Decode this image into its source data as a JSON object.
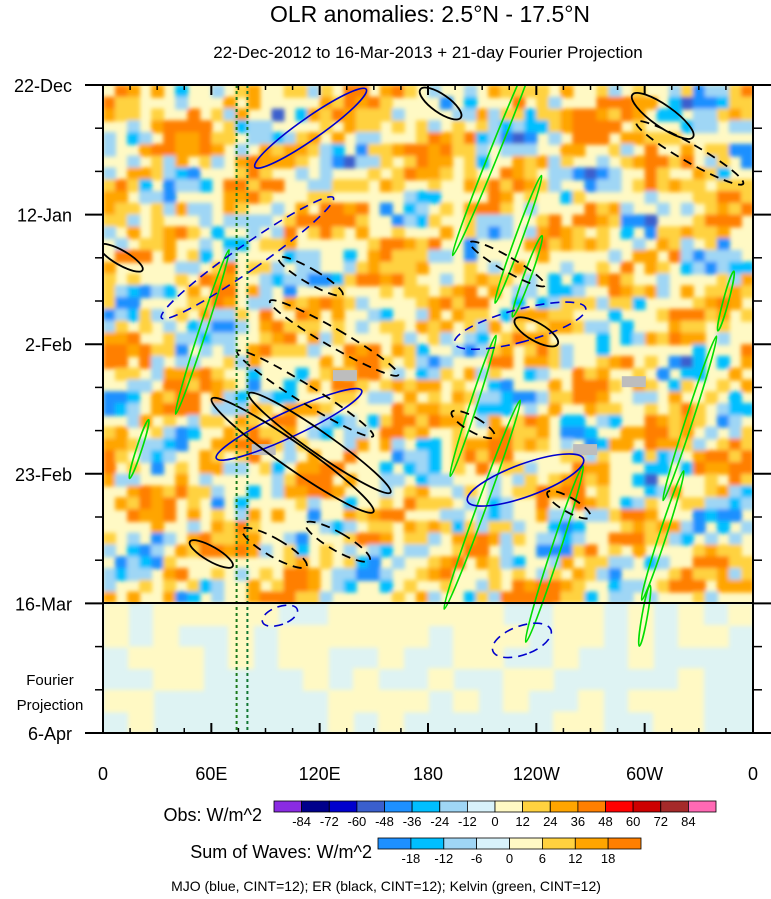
{
  "chart_data": {
    "type": "heatmap",
    "title": "OLR anomalies: 2.5°N - 17.5°N",
    "subtitle": "22-Dec-2012 to 16-Mar-2013 + 21-day Fourier Projection",
    "x_ticks": [
      "0",
      "60E",
      "120E",
      "180",
      "120W",
      "60W",
      "0"
    ],
    "x_tick_lon": [
      0,
      60,
      120,
      180,
      240,
      300,
      360
    ],
    "xlim": [
      0,
      360
    ],
    "y_ticks": [
      "22-Dec",
      "12-Jan",
      "2-Feb",
      "23-Feb",
      "16-Mar",
      "6-Apr"
    ],
    "y_tick_day": [
      0,
      21,
      42,
      63,
      84,
      105
    ],
    "ylim_days": [
      0,
      105
    ],
    "observation_end_day": 84,
    "projection_label_line1": "Fourier",
    "projection_label_line2": "Projection",
    "obs_colorbar": {
      "label": "Obs: W/m^2",
      "levels": [
        "-84",
        "-72",
        "-60",
        "-48",
        "-36",
        "-24",
        "-12",
        "0",
        "12",
        "24",
        "36",
        "48",
        "60",
        "72",
        "84"
      ],
      "colors": [
        "#8a2be2",
        "#00008b",
        "#0000cd",
        "#3a5fcd",
        "#1e90ff",
        "#00bfff",
        "#9fd6f5",
        "#d8f2fb",
        "#fff9c4",
        "#ffd23f",
        "#ffa500",
        "#ff7f00",
        "#ff0000",
        "#cd0000",
        "#a52a2a",
        "#ff69b4"
      ]
    },
    "waves_colorbar": {
      "label": "Sum of Waves: W/m^2",
      "levels": [
        "-18",
        "-12",
        "-6",
        "0",
        "6",
        "12",
        "18"
      ],
      "colors": [
        "#1e90ff",
        "#00bfff",
        "#9fd6f5",
        "#d8f2fb",
        "#fff9c4",
        "#ffd23f",
        "#ffa500",
        "#ff7f00"
      ]
    },
    "legend_note": "MJO (blue, CINT=12); ER (black, CINT=12); Kelvin (green, CINT=12)",
    "reference_longitudes": [
      74,
      80
    ],
    "series": [
      {
        "name": "MJO",
        "color": "#0000cd"
      },
      {
        "name": "ER",
        "color": "#000000"
      },
      {
        "name": "Kelvin",
        "color": "#00dd00"
      }
    ],
    "mjo_contours": [
      {
        "lon": 115,
        "day": 7,
        "len_days": 22,
        "wid": 12,
        "angle": 55,
        "dash": false
      },
      {
        "lon": 80,
        "day": 28,
        "len_days": 34,
        "wid": 14,
        "angle": 55,
        "dash": true
      },
      {
        "lon": 103,
        "day": 55,
        "len_days": 26,
        "wid": 14,
        "angle": 65,
        "dash": false
      },
      {
        "lon": 231,
        "day": 39,
        "len_days": 22,
        "wid": 18,
        "angle": 75,
        "dash": true
      },
      {
        "lon": 234,
        "day": 64,
        "len_days": 20,
        "wid": 18,
        "angle": 70,
        "dash": false
      },
      {
        "lon": 232,
        "day": 90,
        "len_days": 10,
        "wid": 16,
        "angle": 70,
        "dash": true
      },
      {
        "lon": 98,
        "day": 86,
        "len_days": 6,
        "wid": 10,
        "angle": 70,
        "dash": true
      }
    ],
    "er_contours": [
      {
        "lon": 105,
        "day": 60,
        "len_days": 32,
        "wid": 14,
        "angle": -55,
        "dash": false
      },
      {
        "lon": 120,
        "day": 58,
        "len_days": 28,
        "wid": 12,
        "angle": -55,
        "dash": false
      },
      {
        "lon": 112,
        "day": 50,
        "len_days": 26,
        "wid": 10,
        "angle": -58,
        "dash": true
      },
      {
        "lon": 128,
        "day": 41,
        "len_days": 24,
        "wid": 10,
        "angle": -60,
        "dash": true
      },
      {
        "lon": 115,
        "day": 31,
        "len_days": 12,
        "wid": 8,
        "angle": -60,
        "dash": true
      },
      {
        "lon": 10,
        "day": 28,
        "len_days": 8,
        "wid": 8,
        "angle": -60,
        "dash": false
      },
      {
        "lon": 224,
        "day": 29,
        "len_days": 14,
        "wid": 8,
        "angle": -60,
        "dash": true
      },
      {
        "lon": 240,
        "day": 40,
        "len_days": 8,
        "wid": 10,
        "angle": -60,
        "dash": false
      },
      {
        "lon": 205,
        "day": 55,
        "len_days": 8,
        "wid": 8,
        "angle": -60,
        "dash": true
      },
      {
        "lon": 130,
        "day": 74,
        "len_days": 12,
        "wid": 10,
        "angle": -60,
        "dash": true
      },
      {
        "lon": 95,
        "day": 75,
        "len_days": 12,
        "wid": 10,
        "angle": -60,
        "dash": true
      },
      {
        "lon": 187,
        "day": 3,
        "len_days": 8,
        "wid": 10,
        "angle": -55,
        "dash": false
      },
      {
        "lon": 310,
        "day": 5,
        "len_days": 12,
        "wid": 12,
        "angle": -55,
        "dash": false
      },
      {
        "lon": 325,
        "day": 11,
        "len_days": 20,
        "wid": 10,
        "angle": -60,
        "dash": true
      },
      {
        "lon": 258,
        "day": 68,
        "len_days": 8,
        "wid": 8,
        "angle": -60,
        "dash": true
      },
      {
        "lon": 60,
        "day": 76,
        "len_days": 8,
        "wid": 8,
        "angle": -60,
        "dash": false
      }
    ],
    "kelvin_contours": [
      {
        "lon": 218,
        "day": 10,
        "len_days": 38,
        "wid": 5,
        "angle": 22
      },
      {
        "lon": 230,
        "day": 25,
        "len_days": 22,
        "wid": 4,
        "angle": 20
      },
      {
        "lon": 235,
        "day": 31,
        "len_days": 14,
        "wid": 4,
        "angle": 20
      },
      {
        "lon": 55,
        "day": 40,
        "len_days": 28,
        "wid": 4,
        "angle": 18
      },
      {
        "lon": 205,
        "day": 52,
        "len_days": 24,
        "wid": 4,
        "angle": 18
      },
      {
        "lon": 325,
        "day": 54,
        "len_days": 28,
        "wid": 4,
        "angle": 18
      },
      {
        "lon": 210,
        "day": 68,
        "len_days": 36,
        "wid": 5,
        "angle": 20
      },
      {
        "lon": 250,
        "day": 76,
        "len_days": 30,
        "wid": 5,
        "angle": 18
      },
      {
        "lon": 310,
        "day": 73,
        "len_days": 22,
        "wid": 4,
        "angle": 18
      },
      {
        "lon": 345,
        "day": 35,
        "len_days": 10,
        "wid": 3,
        "angle": 15
      },
      {
        "lon": 20,
        "day": 59,
        "len_days": 10,
        "wid": 3,
        "angle": 18
      },
      {
        "lon": 300,
        "day": 86,
        "len_days": 10,
        "wid": 3,
        "angle": 10
      }
    ],
    "missing_patches": [
      {
        "lon": 134,
        "day": 47
      },
      {
        "lon": 89,
        "day": 59
      },
      {
        "lon": 294,
        "day": 48
      },
      {
        "lon": 267,
        "day": 59
      }
    ]
  }
}
